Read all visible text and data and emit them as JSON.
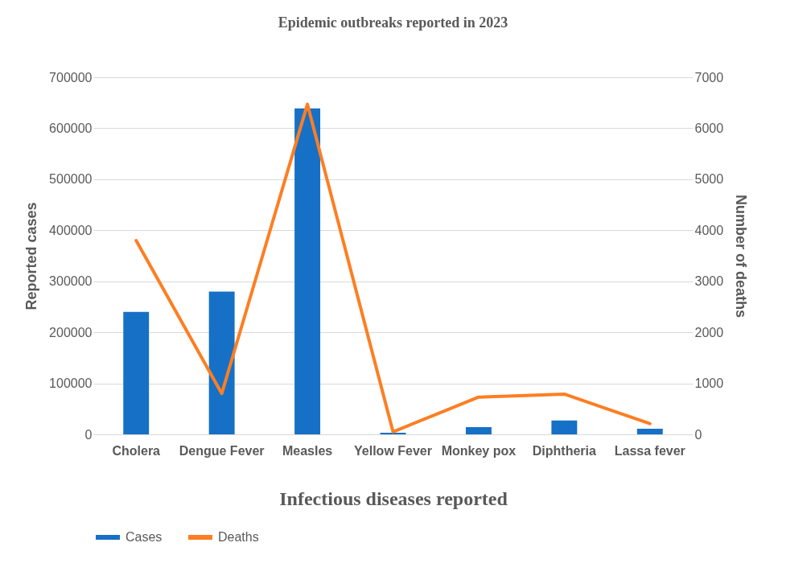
{
  "chart_data": {
    "type": "bar",
    "title": "Epidemic outbreaks reported in 2023",
    "xlabel": "Infectious diseases reported",
    "ylabel": "Reported cases",
    "y2label": "Number of deaths",
    "categories": [
      "Cholera",
      "Dengue Fever",
      "Measles",
      "Yellow Fever",
      "Monkey pox",
      "Diphtheria",
      "Lassa fever"
    ],
    "series": [
      {
        "name": "Cases",
        "color": "#1670c6",
        "values": [
          240000,
          280000,
          639000,
          3000,
          14000,
          27000,
          11000
        ]
      },
      {
        "name": "Deaths",
        "type": "line",
        "axis": "y2",
        "color": "#fd7e23",
        "values": [
          3800,
          800,
          6470,
          50,
          730,
          790,
          210
        ]
      }
    ],
    "ylim": [
      0,
      700000
    ],
    "yticks": [
      0,
      100000,
      200000,
      300000,
      400000,
      500000,
      600000,
      700000
    ],
    "y2lim": [
      0,
      7000
    ],
    "y2ticks": [
      0,
      1000,
      2000,
      3000,
      4000,
      5000,
      6000,
      7000
    ],
    "grid": "y",
    "legend": "bottom",
    "marker": "none",
    "line_style": "solid"
  }
}
